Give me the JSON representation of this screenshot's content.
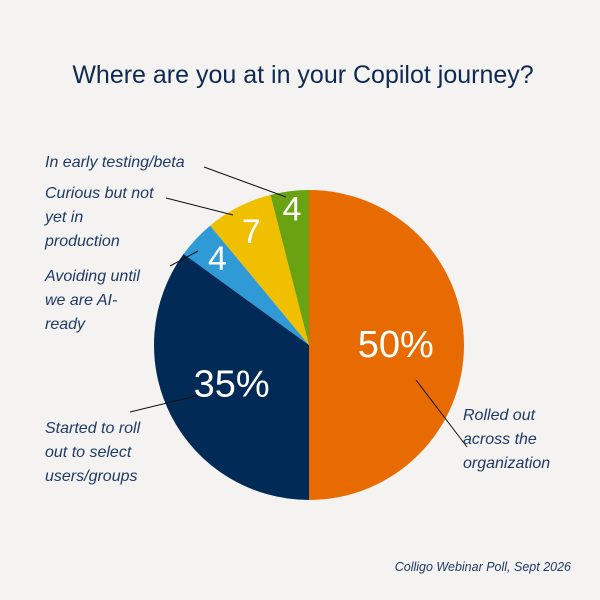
{
  "chart_data": {
    "type": "pie",
    "title": "Where are you at in your Copilot journey?",
    "slices": [
      {
        "label": "Rolled out across the organization",
        "value": 50,
        "value_label": "50%",
        "color": "#e76b00"
      },
      {
        "label": "Started to roll out to select users/groups",
        "value": 35,
        "value_label": "35%",
        "color": "#012a57"
      },
      {
        "label": "Avoiding until we are AI-ready",
        "value": 4,
        "value_label": "4",
        "color": "#2f9ad6"
      },
      {
        "label": "Curious but not yet in production",
        "value": 7,
        "value_label": "7",
        "color": "#f0c000"
      },
      {
        "label": "In early testing/beta",
        "value": 4,
        "value_label": "4",
        "color": "#6aa312"
      }
    ],
    "legend": "none",
    "source": "Colligo Webinar Poll, Sept 2026"
  }
}
